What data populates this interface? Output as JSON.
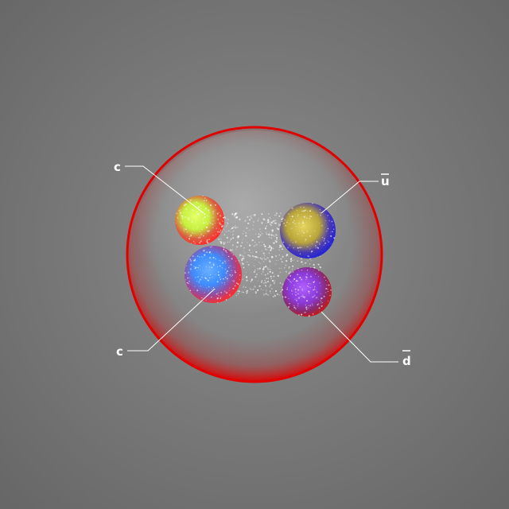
{
  "labels": {
    "top_left": "c",
    "bottom_left": "c",
    "top_right": "u",
    "bottom_right": "d"
  },
  "antiquark_bars": {
    "top_right": true,
    "bottom_right": true
  },
  "colors": {
    "background": "#7a7a7a",
    "hadron_shell": "#e00000",
    "quark_top_left_core": "#c6f040",
    "quark_top_left_shell": "#ff2a2a",
    "quark_bottom_left_core": "#3d8cff",
    "quark_bottom_left_shell": "#ff2a2a",
    "quark_top_right_core": "#c9b94a",
    "quark_top_right_shell": "#2323d8",
    "quark_bottom_right_core": "#8a3ad8",
    "quark_bottom_right_shell": "#c41818",
    "gluon_cloud": "#ffffff"
  }
}
